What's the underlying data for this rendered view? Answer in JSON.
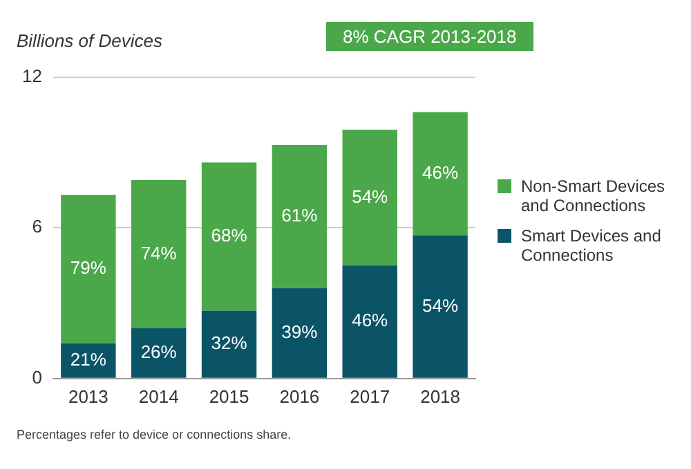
{
  "chart_data": {
    "type": "bar",
    "ylabel": "Billions of Devices",
    "categories": [
      "2013",
      "2014",
      "2015",
      "2016",
      "2017",
      "2018"
    ],
    "stacked": true,
    "series": [
      {
        "name": "Smart Devices and Connections",
        "color": "#0b5468",
        "values": [
          1.4,
          2.0,
          2.7,
          3.6,
          4.5,
          5.7
        ]
      },
      {
        "name": "Non-Smart Devices and Connections",
        "color": "#4ba84a",
        "values": [
          5.9,
          5.9,
          5.9,
          5.7,
          5.4,
          4.9
        ]
      }
    ],
    "ylim": [
      0,
      12
    ],
    "yticks": [
      0,
      6,
      12
    ],
    "grid": "y",
    "legend": "right",
    "annotations": [
      "8% CAGR 2013-2018",
      "Percentages refer to device or connections share.",
      "21%",
      "26%",
      "32%",
      "39%",
      "46%",
      "54%",
      "79%",
      "74%",
      "68%",
      "61%",
      "54%",
      "46%"
    ]
  }
}
